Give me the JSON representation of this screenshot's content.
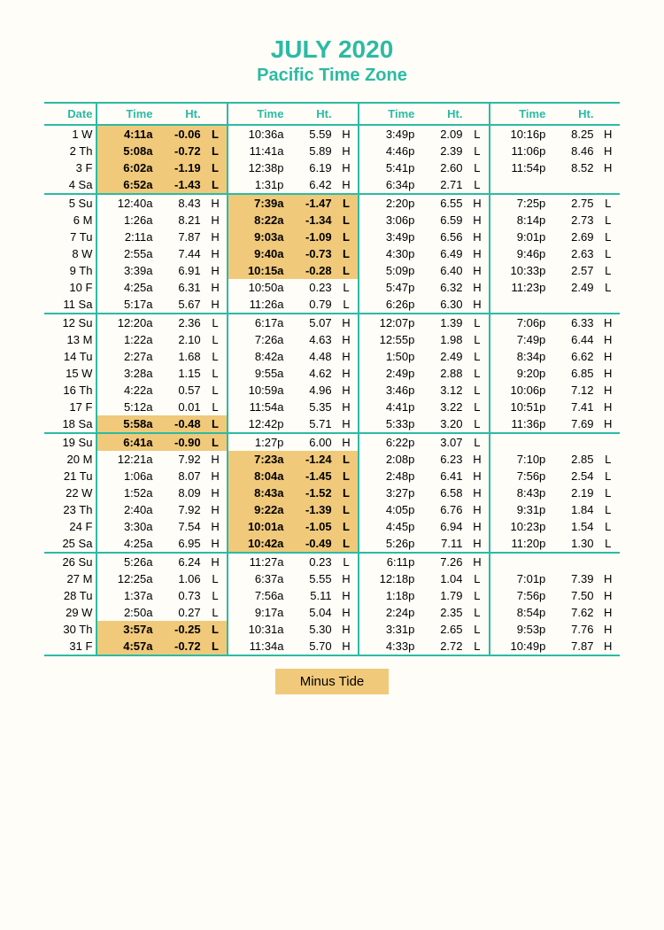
{
  "title": "JULY 2020",
  "subtitle": "Pacific Time Zone",
  "legend": "Minus Tide",
  "colors": {
    "accent": "#2dbaa3",
    "highlight": "#f0c97a",
    "background": "#fefdf8"
  },
  "headers": {
    "date": "Date",
    "time": "Time",
    "ht": "Ht."
  },
  "groups": [
    [
      {
        "date": "1 W",
        "t": [
          [
            "4:11a",
            "-0.06",
            "L",
            true
          ],
          [
            "10:36a",
            "5.59",
            "H",
            false
          ],
          [
            "3:49p",
            "2.09",
            "L",
            false
          ],
          [
            "10:16p",
            "8.25",
            "H",
            false
          ]
        ]
      },
      {
        "date": "2 Th",
        "t": [
          [
            "5:08a",
            "-0.72",
            "L",
            true
          ],
          [
            "11:41a",
            "5.89",
            "H",
            false
          ],
          [
            "4:46p",
            "2.39",
            "L",
            false
          ],
          [
            "11:06p",
            "8.46",
            "H",
            false
          ]
        ]
      },
      {
        "date": "3 F",
        "t": [
          [
            "6:02a",
            "-1.19",
            "L",
            true
          ],
          [
            "12:38p",
            "6.19",
            "H",
            false
          ],
          [
            "5:41p",
            "2.60",
            "L",
            false
          ],
          [
            "11:54p",
            "8.52",
            "H",
            false
          ]
        ]
      },
      {
        "date": "4 Sa",
        "t": [
          [
            "6:52a",
            "-1.43",
            "L",
            true
          ],
          [
            "1:31p",
            "6.42",
            "H",
            false
          ],
          [
            "6:34p",
            "2.71",
            "L",
            false
          ],
          [
            "",
            "",
            "",
            false
          ]
        ]
      }
    ],
    [
      {
        "date": "5 Su",
        "t": [
          [
            "12:40a",
            "8.43",
            "H",
            false
          ],
          [
            "7:39a",
            "-1.47",
            "L",
            true
          ],
          [
            "2:20p",
            "6.55",
            "H",
            false
          ],
          [
            "7:25p",
            "2.75",
            "L",
            false
          ]
        ]
      },
      {
        "date": "6 M",
        "t": [
          [
            "1:26a",
            "8.21",
            "H",
            false
          ],
          [
            "8:22a",
            "-1.34",
            "L",
            true
          ],
          [
            "3:06p",
            "6.59",
            "H",
            false
          ],
          [
            "8:14p",
            "2.73",
            "L",
            false
          ]
        ]
      },
      {
        "date": "7 Tu",
        "t": [
          [
            "2:11a",
            "7.87",
            "H",
            false
          ],
          [
            "9:03a",
            "-1.09",
            "L",
            true
          ],
          [
            "3:49p",
            "6.56",
            "H",
            false
          ],
          [
            "9:01p",
            "2.69",
            "L",
            false
          ]
        ]
      },
      {
        "date": "8 W",
        "t": [
          [
            "2:55a",
            "7.44",
            "H",
            false
          ],
          [
            "9:40a",
            "-0.73",
            "L",
            true
          ],
          [
            "4:30p",
            "6.49",
            "H",
            false
          ],
          [
            "9:46p",
            "2.63",
            "L",
            false
          ]
        ]
      },
      {
        "date": "9 Th",
        "t": [
          [
            "3:39a",
            "6.91",
            "H",
            false
          ],
          [
            "10:15a",
            "-0.28",
            "L",
            true
          ],
          [
            "5:09p",
            "6.40",
            "H",
            false
          ],
          [
            "10:33p",
            "2.57",
            "L",
            false
          ]
        ]
      },
      {
        "date": "10 F",
        "t": [
          [
            "4:25a",
            "6.31",
            "H",
            false
          ],
          [
            "10:50a",
            "0.23",
            "L",
            false
          ],
          [
            "5:47p",
            "6.32",
            "H",
            false
          ],
          [
            "11:23p",
            "2.49",
            "L",
            false
          ]
        ]
      },
      {
        "date": "11 Sa",
        "t": [
          [
            "5:17a",
            "5.67",
            "H",
            false
          ],
          [
            "11:26a",
            "0.79",
            "L",
            false
          ],
          [
            "6:26p",
            "6.30",
            "H",
            false
          ],
          [
            "",
            "",
            "",
            false
          ]
        ]
      }
    ],
    [
      {
        "date": "12 Su",
        "t": [
          [
            "12:20a",
            "2.36",
            "L",
            false
          ],
          [
            "6:17a",
            "5.07",
            "H",
            false
          ],
          [
            "12:07p",
            "1.39",
            "L",
            false
          ],
          [
            "7:06p",
            "6.33",
            "H",
            false
          ]
        ]
      },
      {
        "date": "13 M",
        "t": [
          [
            "1:22a",
            "2.10",
            "L",
            false
          ],
          [
            "7:26a",
            "4.63",
            "H",
            false
          ],
          [
            "12:55p",
            "1.98",
            "L",
            false
          ],
          [
            "7:49p",
            "6.44",
            "H",
            false
          ]
        ]
      },
      {
        "date": "14 Tu",
        "t": [
          [
            "2:27a",
            "1.68",
            "L",
            false
          ],
          [
            "8:42a",
            "4.48",
            "H",
            false
          ],
          [
            "1:50p",
            "2.49",
            "L",
            false
          ],
          [
            "8:34p",
            "6.62",
            "H",
            false
          ]
        ]
      },
      {
        "date": "15 W",
        "t": [
          [
            "3:28a",
            "1.15",
            "L",
            false
          ],
          [
            "9:55a",
            "4.62",
            "H",
            false
          ],
          [
            "2:49p",
            "2.88",
            "L",
            false
          ],
          [
            "9:20p",
            "6.85",
            "H",
            false
          ]
        ]
      },
      {
        "date": "16 Th",
        "t": [
          [
            "4:22a",
            "0.57",
            "L",
            false
          ],
          [
            "10:59a",
            "4.96",
            "H",
            false
          ],
          [
            "3:46p",
            "3.12",
            "L",
            false
          ],
          [
            "10:06p",
            "7.12",
            "H",
            false
          ]
        ]
      },
      {
        "date": "17 F",
        "t": [
          [
            "5:12a",
            "0.01",
            "L",
            false
          ],
          [
            "11:54a",
            "5.35",
            "H",
            false
          ],
          [
            "4:41p",
            "3.22",
            "L",
            false
          ],
          [
            "10:51p",
            "7.41",
            "H",
            false
          ]
        ]
      },
      {
        "date": "18 Sa",
        "t": [
          [
            "5:58a",
            "-0.48",
            "L",
            true
          ],
          [
            "12:42p",
            "5.71",
            "H",
            false
          ],
          [
            "5:33p",
            "3.20",
            "L",
            false
          ],
          [
            "11:36p",
            "7.69",
            "H",
            false
          ]
        ]
      }
    ],
    [
      {
        "date": "19 Su",
        "t": [
          [
            "6:41a",
            "-0.90",
            "L",
            true
          ],
          [
            "1:27p",
            "6.00",
            "H",
            false
          ],
          [
            "6:22p",
            "3.07",
            "L",
            false
          ],
          [
            "",
            "",
            "",
            false
          ]
        ]
      },
      {
        "date": "20 M",
        "t": [
          [
            "12:21a",
            "7.92",
            "H",
            false
          ],
          [
            "7:23a",
            "-1.24",
            "L",
            true
          ],
          [
            "2:08p",
            "6.23",
            "H",
            false
          ],
          [
            "7:10p",
            "2.85",
            "L",
            false
          ]
        ]
      },
      {
        "date": "21 Tu",
        "t": [
          [
            "1:06a",
            "8.07",
            "H",
            false
          ],
          [
            "8:04a",
            "-1.45",
            "L",
            true
          ],
          [
            "2:48p",
            "6.41",
            "H",
            false
          ],
          [
            "7:56p",
            "2.54",
            "L",
            false
          ]
        ]
      },
      {
        "date": "22 W",
        "t": [
          [
            "1:52a",
            "8.09",
            "H",
            false
          ],
          [
            "8:43a",
            "-1.52",
            "L",
            true
          ],
          [
            "3:27p",
            "6.58",
            "H",
            false
          ],
          [
            "8:43p",
            "2.19",
            "L",
            false
          ]
        ]
      },
      {
        "date": "23 Th",
        "t": [
          [
            "2:40a",
            "7.92",
            "H",
            false
          ],
          [
            "9:22a",
            "-1.39",
            "L",
            true
          ],
          [
            "4:05p",
            "6.76",
            "H",
            false
          ],
          [
            "9:31p",
            "1.84",
            "L",
            false
          ]
        ]
      },
      {
        "date": "24 F",
        "t": [
          [
            "3:30a",
            "7.54",
            "H",
            false
          ],
          [
            "10:01a",
            "-1.05",
            "L",
            true
          ],
          [
            "4:45p",
            "6.94",
            "H",
            false
          ],
          [
            "10:23p",
            "1.54",
            "L",
            false
          ]
        ]
      },
      {
        "date": "25 Sa",
        "t": [
          [
            "4:25a",
            "6.95",
            "H",
            false
          ],
          [
            "10:42a",
            "-0.49",
            "L",
            true
          ],
          [
            "5:26p",
            "7.11",
            "H",
            false
          ],
          [
            "11:20p",
            "1.30",
            "L",
            false
          ]
        ]
      }
    ],
    [
      {
        "date": "26 Su",
        "t": [
          [
            "5:26a",
            "6.24",
            "H",
            false
          ],
          [
            "11:27a",
            "0.23",
            "L",
            false
          ],
          [
            "6:11p",
            "7.26",
            "H",
            false
          ],
          [
            "",
            "",
            "",
            false
          ]
        ]
      },
      {
        "date": "27 M",
        "t": [
          [
            "12:25a",
            "1.06",
            "L",
            false
          ],
          [
            "6:37a",
            "5.55",
            "H",
            false
          ],
          [
            "12:18p",
            "1.04",
            "L",
            false
          ],
          [
            "7:01p",
            "7.39",
            "H",
            false
          ]
        ]
      },
      {
        "date": "28 Tu",
        "t": [
          [
            "1:37a",
            "0.73",
            "L",
            false
          ],
          [
            "7:56a",
            "5.11",
            "H",
            false
          ],
          [
            "1:18p",
            "1.79",
            "L",
            false
          ],
          [
            "7:56p",
            "7.50",
            "H",
            false
          ]
        ]
      },
      {
        "date": "29 W",
        "t": [
          [
            "2:50a",
            "0.27",
            "L",
            false
          ],
          [
            "9:17a",
            "5.04",
            "H",
            false
          ],
          [
            "2:24p",
            "2.35",
            "L",
            false
          ],
          [
            "8:54p",
            "7.62",
            "H",
            false
          ]
        ]
      },
      {
        "date": "30 Th",
        "t": [
          [
            "3:57a",
            "-0.25",
            "L",
            true
          ],
          [
            "10:31a",
            "5.30",
            "H",
            false
          ],
          [
            "3:31p",
            "2.65",
            "L",
            false
          ],
          [
            "9:53p",
            "7.76",
            "H",
            false
          ]
        ]
      },
      {
        "date": "31 F",
        "t": [
          [
            "4:57a",
            "-0.72",
            "L",
            true
          ],
          [
            "11:34a",
            "5.70",
            "H",
            false
          ],
          [
            "4:33p",
            "2.72",
            "L",
            false
          ],
          [
            "10:49p",
            "7.87",
            "H",
            false
          ]
        ]
      }
    ]
  ]
}
